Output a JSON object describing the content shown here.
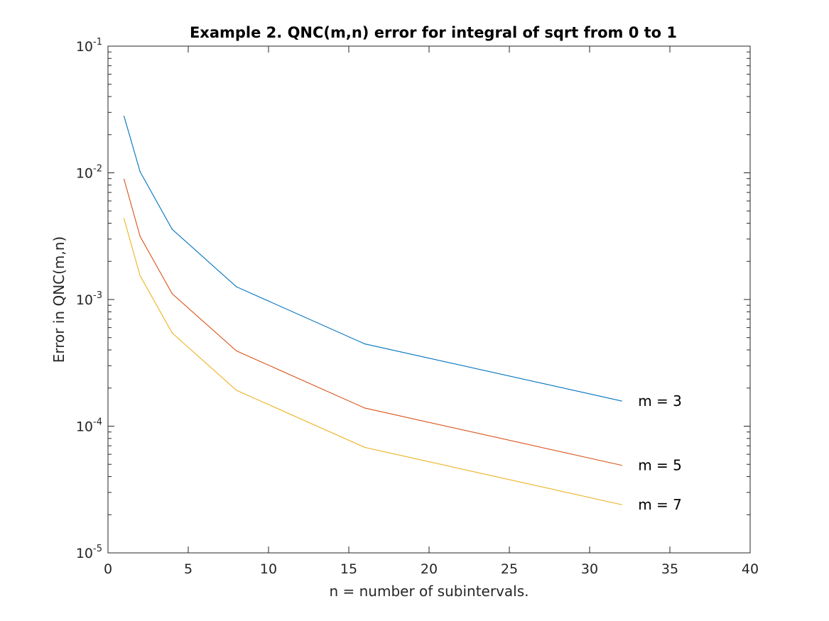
{
  "chart_data": {
    "type": "line",
    "title": "Example 2.   QNC(m,n) error for integral of sqrt from 0 to 1",
    "xlabel": "n = number of subintervals.",
    "ylabel": "Error in QNC(m,n)",
    "xlim": [
      0,
      40
    ],
    "ylim": [
      1e-05,
      0.1
    ],
    "yscale": "log",
    "grid": false,
    "legend": "none",
    "x_ticks": [
      0,
      5,
      10,
      15,
      20,
      25,
      30,
      35,
      40
    ],
    "y_ticks": [
      {
        "value": 0.1,
        "base": "10",
        "exp": "-1"
      },
      {
        "value": 0.01,
        "base": "10",
        "exp": "-2"
      },
      {
        "value": 0.001,
        "base": "10",
        "exp": "-3"
      },
      {
        "value": 0.0001,
        "base": "10",
        "exp": "-4"
      },
      {
        "value": 1e-05,
        "base": "10",
        "exp": "-5"
      }
    ],
    "x": [
      1,
      2,
      4,
      8,
      16,
      32
    ],
    "series": [
      {
        "label": "m = 3",
        "color": "#0072BD",
        "values": [
          0.028,
          0.0102,
          0.00358,
          0.00126,
          0.000446,
          0.000158
        ]
      },
      {
        "label": "m = 5",
        "color": "#D95319",
        "values": [
          0.0089,
          0.00315,
          0.00111,
          0.000393,
          0.000139,
          4.91e-05
        ]
      },
      {
        "label": "m = 7",
        "color": "#EDB120",
        "values": [
          0.00435,
          0.00154,
          0.000544,
          0.000192,
          6.8e-05,
          2.4e-05
        ]
      }
    ]
  }
}
